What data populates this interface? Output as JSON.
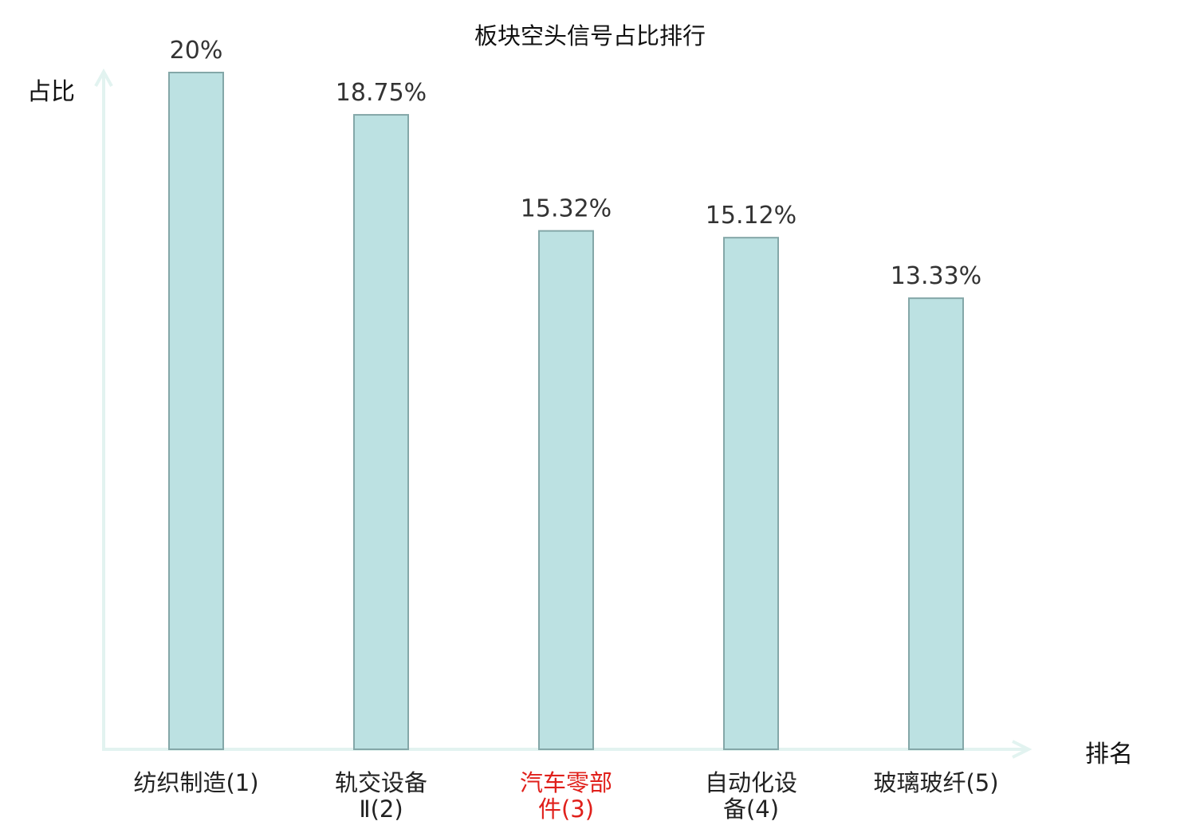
{
  "chart_data": {
    "type": "bar",
    "title": "板块空头信号占比排行",
    "ylabel": "占比",
    "xlabel": "排名",
    "ylim": [
      0,
      20
    ],
    "categories": [
      "纺织制造(1)",
      "轨交设备Ⅱ(2)",
      "汽车零部件(3)",
      "自动化设备(4)",
      "玻璃玻纤(5)"
    ],
    "category_lines": [
      [
        "纺织制造(1)"
      ],
      [
        "轨交设备",
        "Ⅱ(2)"
      ],
      [
        "汽车零部",
        "件(3)"
      ],
      [
        "自动化设",
        "备(4)"
      ],
      [
        "玻璃玻纤(5)"
      ]
    ],
    "values": [
      20,
      18.75,
      15.32,
      15.12,
      13.33
    ],
    "value_labels": [
      "20%",
      "18.75%",
      "15.32%",
      "15.12%",
      "13.33%"
    ],
    "highlight_index": 2,
    "colors": {
      "bar_fill": "#bce1e2",
      "bar_stroke": "#84a7a8",
      "axis": "#e2f3f0",
      "highlight_text": "#e0201b",
      "text": "#222222"
    }
  }
}
